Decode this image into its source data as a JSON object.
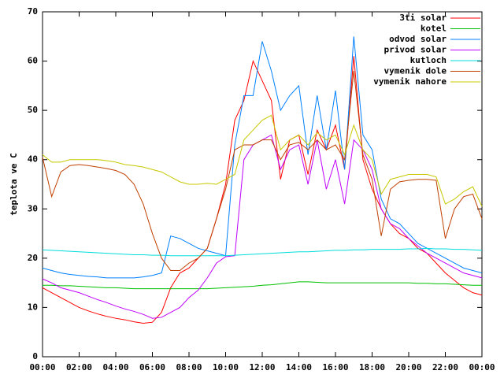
{
  "chart_data": {
    "type": "line",
    "y_label": "teplota ve C",
    "x": [
      0,
      0.5,
      1,
      1.5,
      2,
      2.5,
      3,
      3.5,
      4,
      4.5,
      5,
      5.5,
      6,
      6.5,
      7,
      7.5,
      8,
      8.5,
      9,
      9.5,
      10,
      10.5,
      11,
      11.5,
      12,
      12.5,
      13,
      13.5,
      14,
      14.5,
      15,
      15.5,
      16,
      16.5,
      17,
      17.5,
      18,
      18.5,
      19,
      19.5,
      20,
      20.5,
      21,
      21.5,
      22,
      22.5,
      23,
      23.5,
      24
    ],
    "xlim": [
      0,
      24
    ],
    "xticks": [
      {
        "value": 0,
        "label": "00:00"
      },
      {
        "value": 2,
        "label": "02:00"
      },
      {
        "value": 4,
        "label": "04:00"
      },
      {
        "value": 6,
        "label": "06:00"
      },
      {
        "value": 8,
        "label": "08:00"
      },
      {
        "value": 10,
        "label": "10:00"
      },
      {
        "value": 12,
        "label": "12:00"
      },
      {
        "value": 14,
        "label": "14:00"
      },
      {
        "value": 16,
        "label": "16:00"
      },
      {
        "value": 18,
        "label": "18:00"
      },
      {
        "value": 20,
        "label": "20:00"
      },
      {
        "value": 22,
        "label": "22:00"
      },
      {
        "value": 24,
        "label": "00:00"
      }
    ],
    "ylim": [
      0,
      70
    ],
    "yticks": [
      0,
      10,
      20,
      30,
      40,
      50,
      60,
      70
    ],
    "legend": "top-right",
    "series": [
      {
        "name": "3ti solar",
        "color": "#ff0000",
        "values": [
          14,
          13,
          12,
          11,
          10,
          9.3,
          8.7,
          8.2,
          7.8,
          7.5,
          7.1,
          6.8,
          7,
          9,
          14,
          17,
          18,
          20,
          22,
          28,
          35,
          48,
          52,
          60,
          56,
          52,
          36,
          44,
          45,
          37,
          46,
          42,
          47,
          38,
          61,
          40,
          34,
          30,
          27,
          25,
          24,
          22,
          21,
          19,
          17,
          15.5,
          14,
          13,
          12.5
        ]
      },
      {
        "name": "kotel",
        "color": "#00c000",
        "values": [
          14.5,
          14.5,
          14.4,
          14.4,
          14.3,
          14.2,
          14.1,
          14,
          14,
          13.9,
          13.8,
          13.8,
          13.8,
          13.8,
          13.8,
          13.8,
          13.8,
          13.8,
          13.8,
          13.9,
          14,
          14.1,
          14.2,
          14.3,
          14.5,
          14.6,
          14.8,
          15,
          15.2,
          15.2,
          15.1,
          15,
          15,
          15,
          15,
          15,
          15,
          15,
          15,
          15,
          15,
          14.9,
          14.9,
          14.8,
          14.8,
          14.7,
          14.6,
          14.5,
          14.5
        ]
      },
      {
        "name": "odvod solar",
        "color": "#0080ff",
        "values": [
          18,
          17.5,
          17,
          16.7,
          16.5,
          16.3,
          16.2,
          16,
          16,
          16,
          16,
          16.2,
          16.5,
          17,
          24.5,
          24,
          23,
          22,
          21.5,
          21,
          20.5,
          43,
          53,
          53,
          64,
          58,
          50,
          53,
          55,
          41,
          53,
          42,
          54,
          38,
          65,
          45,
          42,
          32,
          28,
          27,
          25,
          23,
          22,
          21,
          20,
          19,
          18,
          17.5,
          17
        ]
      },
      {
        "name": "privod solar",
        "color": "#c000ff",
        "values": [
          15.8,
          15,
          14,
          13.5,
          13,
          12.3,
          11.6,
          11,
          10.3,
          9.7,
          9.2,
          8.6,
          7.8,
          8,
          9,
          10,
          12,
          13.5,
          16,
          19,
          20.3,
          20.5,
          40,
          43,
          44,
          45,
          38,
          42,
          43,
          35,
          44,
          34,
          40,
          31,
          44,
          42,
          38,
          30,
          27,
          26,
          24,
          22.5,
          21,
          20,
          19,
          18,
          17,
          16.5,
          16
        ]
      },
      {
        "name": "kutloch",
        "color": "#00dddd",
        "values": [
          21.7,
          21.6,
          21.5,
          21.4,
          21.3,
          21.2,
          21.1,
          21,
          20.9,
          20.8,
          20.7,
          20.7,
          20.6,
          20.6,
          20.5,
          20.5,
          20.5,
          20.5,
          20.5,
          20.5,
          20.5,
          20.6,
          20.7,
          20.8,
          20.9,
          21,
          21.1,
          21.2,
          21.3,
          21.3,
          21.4,
          21.5,
          21.6,
          21.6,
          21.7,
          21.7,
          21.8,
          21.8,
          21.8,
          21.8,
          21.9,
          21.9,
          22,
          21.9,
          21.9,
          21.8,
          21.8,
          21.7,
          21.6
        ]
      },
      {
        "name": "vymenik dole",
        "color": "#c04000",
        "values": [
          40.5,
          32.5,
          37.5,
          38.8,
          39,
          38.8,
          38.5,
          38.2,
          37.8,
          37,
          35,
          31,
          25,
          20,
          17.5,
          17.5,
          19,
          20,
          22,
          28,
          34,
          42,
          43,
          43,
          44,
          44,
          40,
          43,
          43.5,
          42,
          44,
          42,
          43,
          40,
          58,
          41,
          36,
          24.5,
          34,
          35.5,
          35.8,
          36,
          36,
          35.8,
          24,
          30,
          32.5,
          33,
          28
        ]
      },
      {
        "name": "vymenik nahore",
        "color": "#c8c800",
        "values": [
          41,
          39.5,
          39.5,
          40,
          40,
          40,
          40,
          39.8,
          39.5,
          39,
          38.8,
          38.5,
          38,
          37.5,
          36.5,
          35.5,
          35,
          35,
          35.2,
          35,
          36,
          37,
          44,
          46,
          48,
          49,
          42,
          44,
          45,
          43,
          45.5,
          44,
          45,
          41,
          47,
          42,
          40,
          33,
          36,
          36.5,
          37,
          37,
          37,
          36.5,
          31,
          32,
          33.5,
          34.5,
          30.5
        ]
      }
    ]
  }
}
